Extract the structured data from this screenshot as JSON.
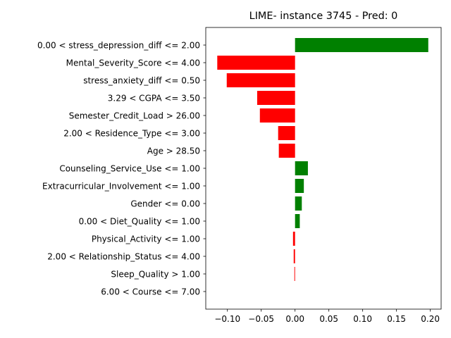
{
  "chart_data": {
    "type": "bar",
    "orientation": "horizontal",
    "title": "LIME- instance 3745 - Pred: 0",
    "xlabel": "",
    "ylabel": "",
    "xlim": [
      -0.132,
      0.216
    ],
    "xticks": [
      -0.1,
      -0.05,
      0.0,
      0.05,
      0.1,
      0.15,
      0.2
    ],
    "xtick_labels": [
      "−0.10",
      "−0.05",
      "0.00",
      "0.05",
      "0.10",
      "0.15",
      "0.20"
    ],
    "grid": false,
    "legend": "none",
    "positive_color": "#008000",
    "negative_color": "#ff0000",
    "categories": [
      "0.00 < stress_depression_diff <= 2.00",
      "Mental_Severity_Score <= 4.00",
      "stress_anxiety_diff <= 0.50",
      "3.29 < CGPA <= 3.50",
      "Semester_Credit_Load > 26.00",
      "2.00 < Residence_Type <= 3.00",
      "Age > 28.50",
      "Counseling_Service_Use <= 1.00",
      "Extracurricular_Involvement <= 1.00",
      "Gender <= 0.00",
      "0.00 < Diet_Quality <= 1.00",
      "Physical_Activity <= 1.00",
      "2.00 < Relationship_Status <= 4.00",
      "Sleep_Quality > 1.00",
      "6.00 < Course <= 7.00"
    ],
    "values": [
      0.197,
      -0.115,
      -0.101,
      -0.056,
      -0.052,
      -0.025,
      -0.024,
      0.019,
      0.013,
      0.01,
      0.007,
      -0.003,
      -0.002,
      -0.001,
      0.0
    ]
  }
}
